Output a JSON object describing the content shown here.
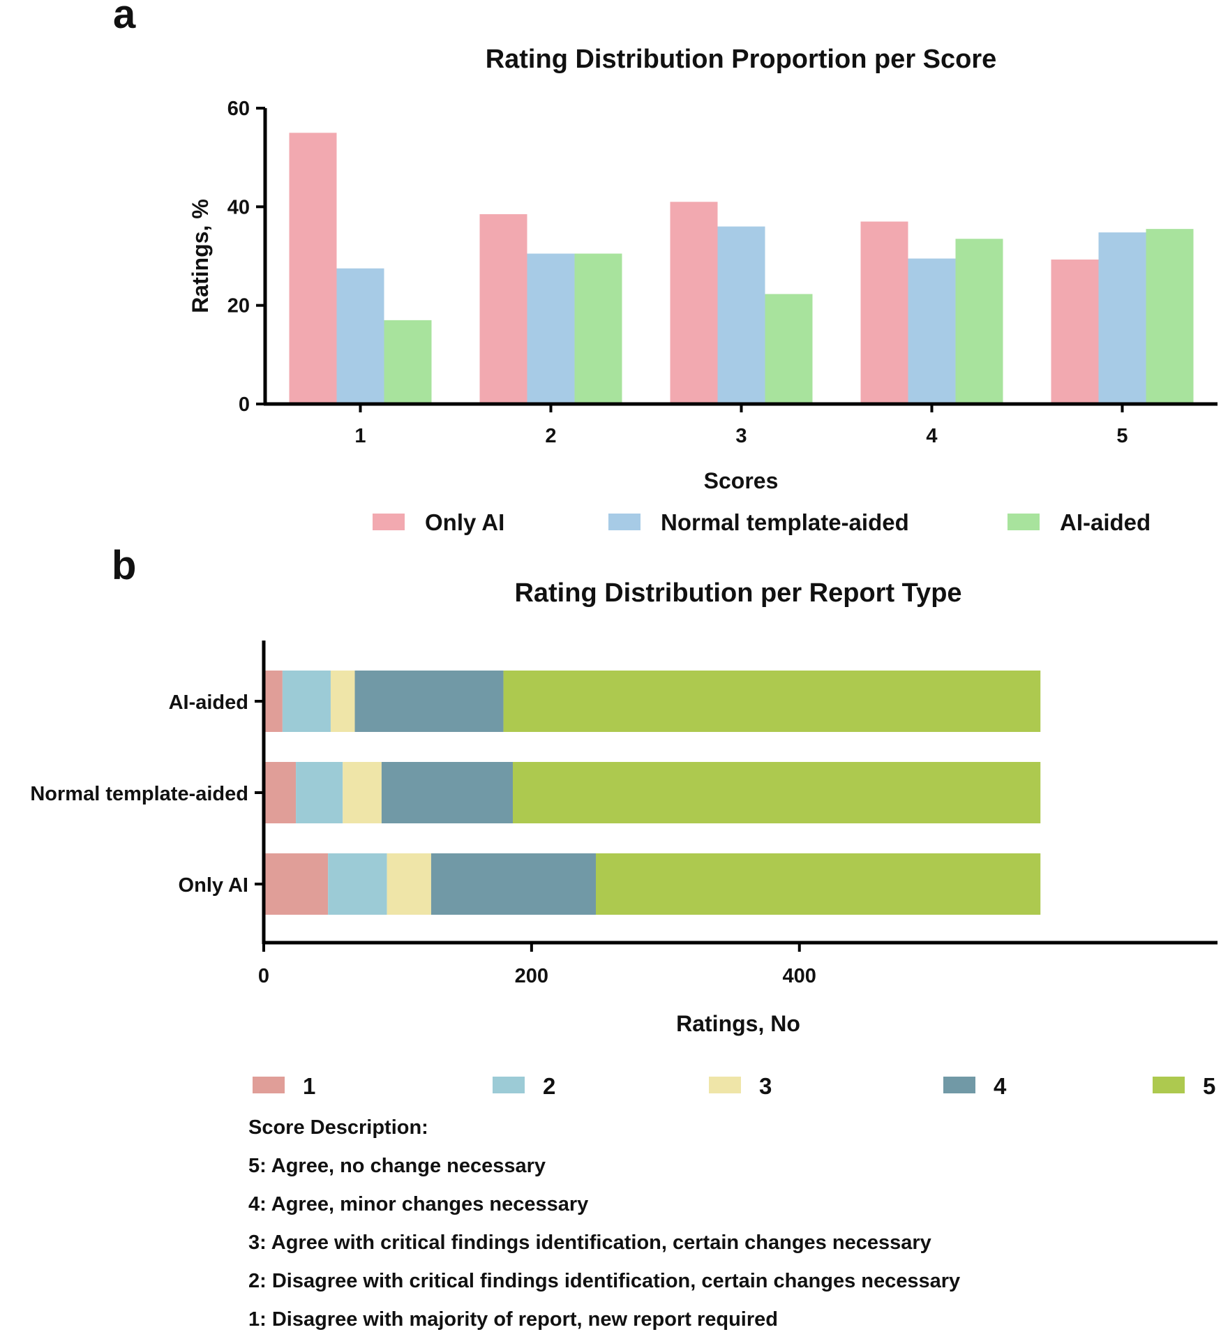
{
  "chart_data": [
    {
      "panel": "a",
      "type": "bar",
      "title": "Rating Distribution Proportion per Score",
      "xlabel": "Scores",
      "ylabel": "Ratings, %",
      "categories": [
        "1",
        "2",
        "3",
        "4",
        "5"
      ],
      "ylim": [
        0,
        60
      ],
      "yticks": [
        0,
        20,
        40,
        60
      ],
      "series": [
        {
          "name": "Only AI",
          "color": "#f2a9b0",
          "values": [
            55,
            38.5,
            41,
            37,
            29.3
          ]
        },
        {
          "name": "Normal template-aided",
          "color": "#a7cbe6",
          "values": [
            27.5,
            30.5,
            36,
            29.5,
            34.8
          ]
        },
        {
          "name": "AI-aided",
          "color": "#a8e39d",
          "values": [
            17,
            30.5,
            22.3,
            33.5,
            35.5
          ]
        }
      ],
      "legend_position": "bottom"
    },
    {
      "panel": "b",
      "type": "bar",
      "orientation": "horizontal",
      "stacked": true,
      "title": "Rating Distribution per Report Type",
      "xlabel": "Ratings, No",
      "ylabel": "",
      "categories": [
        "AI-aided",
        "Normal template-aided",
        "Only AI"
      ],
      "xlim": [
        0,
        580
      ],
      "xticks": [
        0,
        200,
        400
      ],
      "series": [
        {
          "name": "1",
          "color": "#e09e98",
          "values": [
            14,
            24,
            48
          ]
        },
        {
          "name": "2",
          "color": "#9ccbd6",
          "values": [
            36,
            35,
            44
          ]
        },
        {
          "name": "3",
          "color": "#efe5a8",
          "values": [
            18,
            29,
            33
          ]
        },
        {
          "name": "4",
          "color": "#7199a6",
          "values": [
            111,
            98,
            123
          ]
        },
        {
          "name": "5",
          "color": "#adc94f",
          "values": [
            401,
            394,
            332
          ]
        }
      ],
      "legend_position": "bottom"
    }
  ],
  "panel_a": {
    "letter": "a"
  },
  "panel_b": {
    "letter": "b",
    "description_title": "Score Description:",
    "descriptions": [
      "5: Agree, no change necessary",
      "4: Agree, minor changes necessary",
      "3: Agree with critical findings identification, certain changes necessary",
      "2: Disagree with critical findings identification, certain changes necessary",
      "1: Disagree with majority of report, new report required"
    ]
  }
}
